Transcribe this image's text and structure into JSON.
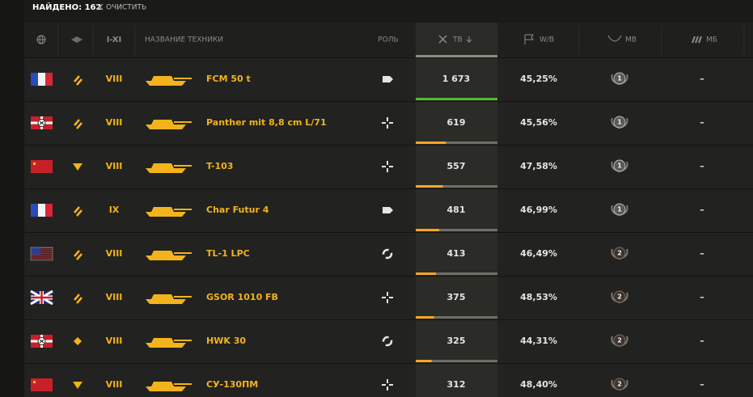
{
  "toolbar": {
    "found": "НАЙДЕНО: 162",
    "clear": "ОЧИСТИТЬ"
  },
  "columns": {
    "tier": "I-XI",
    "name": "НАЗВАНИЕ ТЕХНИКИ",
    "role": "РОЛЬ",
    "battles": "ТВ",
    "winrate": "W/B",
    "mastery": "МВ",
    "marks": "МБ"
  },
  "rows": [
    {
      "tier": "VIII",
      "name": "FCM 50 t",
      "battles": 1673,
      "battles_label": "1 673",
      "winrate": "45,25%",
      "mastery": "1",
      "marks": "–"
    },
    {
      "tier": "VIII",
      "name": "Panther mit 8,8 cm L/71",
      "battles": 619,
      "battles_label": "619",
      "winrate": "45,56%",
      "mastery": "1",
      "marks": "–"
    },
    {
      "tier": "VIII",
      "name": "T-103",
      "battles": 557,
      "battles_label": "557",
      "winrate": "47,58%",
      "mastery": "1",
      "marks": "–"
    },
    {
      "tier": "IX",
      "name": "Char Futur 4",
      "battles": 481,
      "battles_label": "481",
      "winrate": "46,99%",
      "mastery": "1",
      "marks": "–"
    },
    {
      "tier": "VIII",
      "name": "TL-1 LPC",
      "battles": 413,
      "battles_label": "413",
      "winrate": "46,49%",
      "mastery": "2",
      "marks": "–"
    },
    {
      "tier": "VIII",
      "name": "GSOR 1010 FB",
      "battles": 375,
      "battles_label": "375",
      "winrate": "48,53%",
      "mastery": "2",
      "marks": "–"
    },
    {
      "tier": "VIII",
      "name": "HWK 30",
      "battles": 325,
      "battles_label": "325",
      "winrate": "44,31%",
      "mastery": "2",
      "marks": "–"
    },
    {
      "tier": "VIII",
      "name": "СУ-130ПМ",
      "battles": 312,
      "battles_label": "312",
      "winrate": "48,40%",
      "mastery": "2",
      "marks": "–"
    }
  ]
}
